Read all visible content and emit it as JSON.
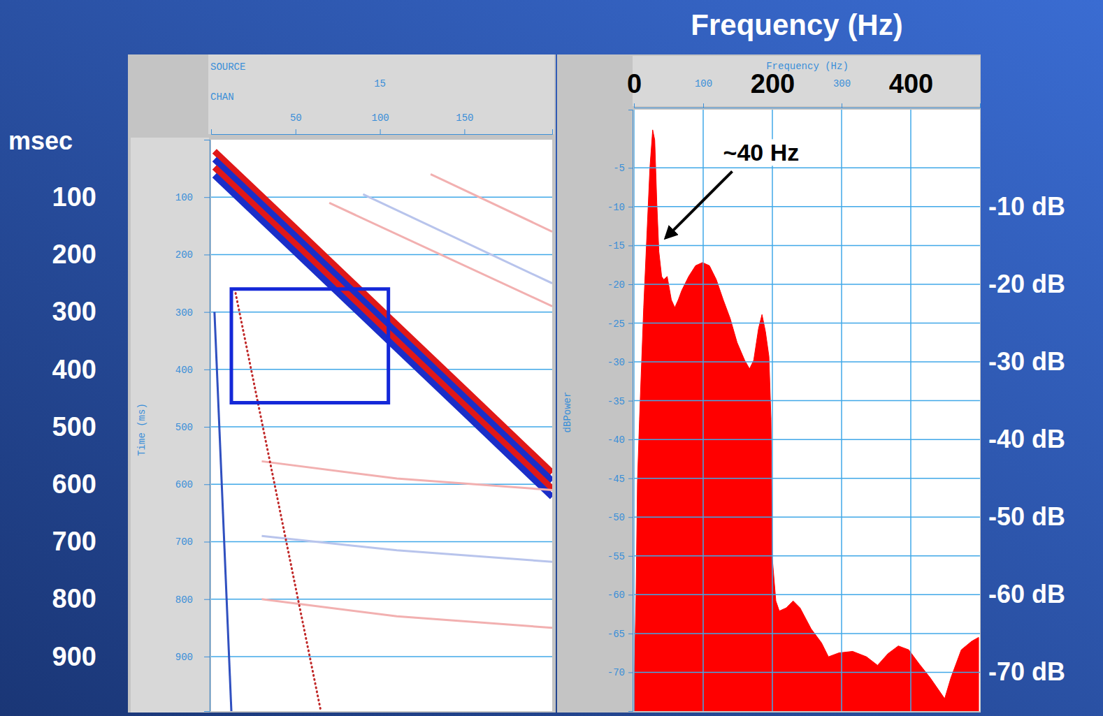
{
  "chart_data": [
    {
      "type": "seismic",
      "xlabel": "CHAN",
      "ylabel": "Time (ms)",
      "source": {
        "label": "SOURCE",
        "value": 15,
        "channel": 100
      },
      "xlim": [
        0,
        202
      ],
      "xticks": [
        50,
        100,
        150
      ],
      "ylim": [
        995,
        0
      ],
      "yticks": [
        100,
        200,
        300,
        400,
        500,
        600,
        700,
        800,
        900
      ],
      "y2label": "msec",
      "y2lim": [
        995,
        0
      ],
      "y2ticks": [
        100,
        200,
        300,
        400,
        500,
        600,
        700,
        800,
        900
      ],
      "grid": true,
      "highlight": {
        "x": [
          12,
          105
        ],
        "y": [
          260,
          458
        ],
        "color": "#1428d8"
      },
      "series": [
        {
          "color": "#e01818",
          "line_style": "solid",
          "x": [
            2,
            50,
            100,
            150,
            202
          ],
          "values": [
            20,
            154,
            294,
            434,
            580
          ]
        },
        {
          "color": "#1a2ec8",
          "line_style": "solid",
          "x": [
            2,
            50,
            100,
            150,
            202
          ],
          "values": [
            34,
            168,
            308,
            448,
            594
          ]
        },
        {
          "color": "#e01818",
          "line_style": "solid",
          "x": [
            2,
            50,
            100,
            150,
            202
          ],
          "values": [
            48,
            182,
            322,
            462,
            608
          ]
        },
        {
          "color": "#1a2ec8",
          "line_style": "solid",
          "x": [
            2,
            50,
            100,
            150,
            202
          ],
          "values": [
            62,
            196,
            336,
            476,
            622
          ]
        },
        {
          "color": "#f2b0b0",
          "line_style": "thin",
          "x": [
            70,
            202
          ],
          "values": [
            110,
            290
          ]
        },
        {
          "color": "#b8c4ec",
          "line_style": "thin",
          "x": [
            90,
            202
          ],
          "values": [
            95,
            250
          ]
        },
        {
          "color": "#f2b0b0",
          "line_style": "thin",
          "x": [
            130,
            202
          ],
          "values": [
            60,
            160
          ]
        },
        {
          "color": "#f2b0b0",
          "line_style": "thin",
          "x": [
            30,
            110,
            202
          ],
          "values": [
            560,
            590,
            610
          ]
        },
        {
          "color": "#b8c4ec",
          "line_style": "thin",
          "x": [
            30,
            110,
            202
          ],
          "values": [
            690,
            715,
            735
          ]
        },
        {
          "color": "#f2b0b0",
          "line_style": "thin",
          "x": [
            30,
            110,
            202
          ],
          "values": [
            800,
            830,
            850
          ]
        },
        {
          "color": "#c02828",
          "line_style": "dotted",
          "x": [
            14,
            65
          ],
          "values": [
            260,
            995
          ]
        },
        {
          "color": "#3050c0",
          "line_style": "thin",
          "x": [
            2,
            12
          ],
          "values": [
            300,
            995
          ]
        }
      ]
    },
    {
      "type": "area",
      "title": "Frequency (Hz)",
      "xlabel": "Frequency (Hz)",
      "ylabel": "dBPower",
      "color": "#ff0000",
      "x": [
        0,
        3,
        5,
        8,
        11,
        14,
        19,
        23,
        27,
        30,
        33,
        36,
        40,
        43,
        48,
        54,
        59,
        64,
        69,
        79,
        89,
        99,
        109,
        119,
        129,
        139,
        149,
        160,
        167,
        173,
        180,
        185,
        190,
        195,
        198,
        200,
        205,
        210,
        220,
        230,
        240,
        256,
        271,
        281,
        296,
        316,
        336,
        352,
        367,
        382,
        397,
        412,
        428,
        442,
        449,
        458,
        473,
        488,
        498
      ],
      "values": [
        -73,
        -60,
        -45.5,
        -37.4,
        -30.2,
        -23,
        -13,
        -5,
        -0.1,
        -1.4,
        -9.5,
        -15.8,
        -19,
        -19.4,
        -19,
        -22,
        -23,
        -22,
        -20.8,
        -19,
        -17.6,
        -17.2,
        -17.6,
        -19.4,
        -22,
        -24.4,
        -27.5,
        -29.8,
        -30.9,
        -29.8,
        -25.7,
        -23.9,
        -26.1,
        -29.3,
        -37.4,
        -55.4,
        -60.8,
        -62.1,
        -61.7,
        -60.8,
        -61.7,
        -64.4,
        -66.2,
        -68,
        -67.5,
        -67.3,
        -68,
        -69.1,
        -67.6,
        -66.6,
        -67.1,
        -68.9,
        -70.7,
        -72.5,
        -73.4,
        -70.7,
        -67.1,
        -66,
        -65.5
      ],
      "xlim": [
        0,
        500
      ],
      "xticks": [
        100,
        300
      ],
      "x2lim": [
        0,
        500
      ],
      "x2ticks": [
        0,
        200,
        400
      ],
      "ylim": [
        -75,
        2.5
      ],
      "yticks": [
        -5,
        -10,
        -15,
        -20,
        -25,
        -30,
        -35,
        -40,
        -45,
        -50,
        -55,
        -60,
        -65,
        -70
      ],
      "y2lim": [
        -75,
        2.5
      ],
      "y2ticks": [
        {
          "value": -10,
          "label": "-10 dB"
        },
        {
          "value": -20,
          "label": "-20 dB"
        },
        {
          "value": -30,
          "label": "-30 dB"
        },
        {
          "value": -40,
          "label": "-40 dB"
        },
        {
          "value": -50,
          "label": "-50 dB"
        },
        {
          "value": -60,
          "label": "-60 dB"
        },
        {
          "value": -70,
          "label": "-70 dB"
        }
      ],
      "grid": true,
      "annotations": [
        {
          "text": "~40 Hz",
          "x": 46,
          "y": -14
        }
      ]
    }
  ]
}
